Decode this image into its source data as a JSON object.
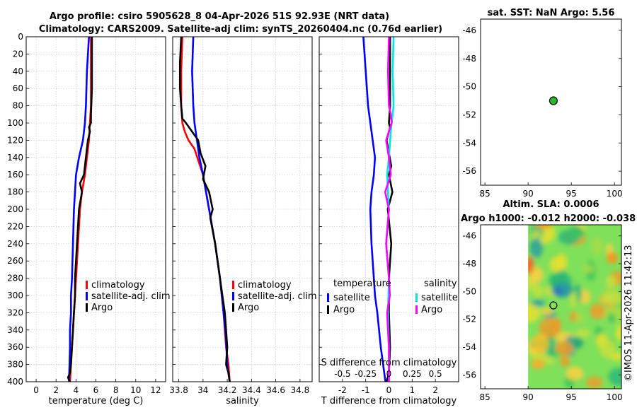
{
  "header": {
    "line1": "Argo profile: csiro 5905628_8 04-Apr-2026 51S 92.93E (NRT data)",
    "line2": "Climatology: CARS2009. Satellite-adj clim: synTS_20260404.nc (0.76d earlier)"
  },
  "stamp": "©IMOS 11-Apr-2026 11:42:13",
  "colors": {
    "climatology": "#ff0000",
    "satellite": "#0000ff",
    "argo": "#000000",
    "sat_salinity": "#00e5e5",
    "argo_salinity": "#ff00ff",
    "marker": "#22bb22"
  },
  "chart_data": [
    {
      "id": "temperature",
      "type": "line",
      "xlabel": "temperature (deg C)",
      "ylabel": "",
      "xlim": [
        -1,
        13
      ],
      "ylim": [
        400,
        0
      ],
      "xticks": [
        0,
        2,
        4,
        6,
        8,
        10,
        12
      ],
      "yticks": [
        0,
        20,
        40,
        60,
        80,
        100,
        120,
        140,
        160,
        180,
        200,
        220,
        240,
        260,
        280,
        300,
        320,
        340,
        360,
        380,
        400
      ],
      "grid": true,
      "legend": {
        "position": "lower-right",
        "entries": [
          "climatology",
          "satellite-adj. clim",
          "Argo"
        ]
      },
      "series": [
        {
          "name": "climatology",
          "color": "#ff0000",
          "x": [
            5.5,
            5.5,
            5.5,
            5.4,
            5.3,
            5.1,
            4.9,
            4.6,
            4.4,
            4.3,
            4.2,
            4.1,
            4.0,
            3.9,
            3.8,
            3.7,
            3.6,
            3.5,
            3.4
          ],
          "y": [
            0,
            40,
            80,
            100,
            120,
            140,
            160,
            180,
            200,
            220,
            240,
            260,
            280,
            300,
            320,
            340,
            360,
            380,
            400
          ]
        },
        {
          "name": "satellite-adj. clim",
          "color": "#0000ff",
          "x": [
            5.3,
            5.1,
            5.0,
            4.9,
            4.7,
            4.3,
            4.0,
            3.8,
            3.7,
            3.6,
            3.5,
            3.5,
            3.4,
            3.4,
            3.3
          ],
          "y": [
            0,
            40,
            80,
            100,
            120,
            140,
            160,
            200,
            240,
            280,
            300,
            320,
            340,
            360,
            400
          ]
        },
        {
          "name": "Argo",
          "color": "#000000",
          "x": [
            5.6,
            5.6,
            5.6,
            5.5,
            5.5,
            5.3,
            5.4,
            5.2,
            5.0,
            4.9,
            4.8,
            4.4,
            4.6,
            4.3,
            4.2,
            4.1,
            4.0,
            3.9,
            3.9,
            3.8,
            3.7,
            3.6,
            3.5,
            3.4,
            3.2,
            3.3,
            3.4
          ],
          "y": [
            0,
            30,
            60,
            90,
            100,
            105,
            110,
            120,
            140,
            150,
            160,
            170,
            180,
            200,
            220,
            240,
            260,
            280,
            300,
            320,
            340,
            360,
            380,
            390,
            395,
            398,
            400
          ]
        }
      ]
    },
    {
      "id": "salinity",
      "type": "line",
      "xlabel": "salinity",
      "ylabel": "",
      "xlim": [
        33.75,
        34.9
      ],
      "ylim": [
        400,
        0
      ],
      "xticks": [
        33.8,
        34.0,
        34.2,
        34.4,
        34.6,
        34.8
      ],
      "xtick_labels": [
        "33.8",
        "34",
        "34.2",
        "34.4",
        "34.6",
        "34.8"
      ],
      "grid": true,
      "legend": {
        "position": "lower-right",
        "entries": [
          "climatology",
          "satellite-adj. clim",
          "Argo"
        ]
      },
      "series": [
        {
          "name": "climatology",
          "color": "#ff0000",
          "x": [
            33.83,
            33.82,
            33.82,
            33.83,
            33.85,
            33.88,
            33.93,
            34.0,
            34.05,
            34.1,
            34.14,
            34.17,
            34.19,
            34.21,
            34.22
          ],
          "y": [
            0,
            40,
            80,
            100,
            110,
            120,
            130,
            160,
            200,
            240,
            280,
            320,
            360,
            380,
            400
          ]
        },
        {
          "name": "satellite-adj. clim",
          "color": "#0000ff",
          "x": [
            33.92,
            33.91,
            33.92,
            33.93,
            33.95,
            33.97,
            34.0,
            34.05,
            34.1,
            34.14,
            34.17,
            34.19,
            34.2,
            34.22
          ],
          "y": [
            0,
            40,
            80,
            100,
            120,
            140,
            160,
            200,
            240,
            280,
            320,
            350,
            380,
            400
          ]
        },
        {
          "name": "Argo",
          "color": "#000000",
          "x": [
            33.82,
            33.81,
            33.81,
            33.82,
            33.83,
            33.86,
            33.91,
            33.96,
            33.98,
            34.02,
            34.0,
            34.05,
            34.08,
            34.06,
            34.1,
            34.14,
            34.16,
            34.18,
            34.19,
            34.2,
            34.19,
            34.21,
            34.22
          ],
          "y": [
            0,
            30,
            60,
            80,
            95,
            100,
            110,
            120,
            135,
            150,
            165,
            180,
            200,
            210,
            240,
            280,
            300,
            320,
            340,
            360,
            380,
            390,
            400
          ]
        }
      ]
    },
    {
      "id": "difference",
      "type": "line",
      "xlabel": "T difference from climatology",
      "x2label": "S difference from climatology",
      "xlim": [
        -3,
        3
      ],
      "x2lim": [
        -0.75,
        0.75
      ],
      "ylim": [
        400,
        0
      ],
      "xticks": [
        -2,
        -1,
        0,
        1,
        2
      ],
      "x2ticks": [
        -0.5,
        -0.25,
        0,
        0.25,
        0.5
      ],
      "x2tick_labels": [
        "-0.5",
        "-0.25",
        "0",
        "0.25",
        "0.5"
      ],
      "grid": true,
      "legend": {
        "position": "lower",
        "temperature_title": "temperature",
        "salinity_title": "salinity",
        "temperature_entries": [
          "satellite",
          "Argo"
        ],
        "salinity_entries": [
          "satellite",
          "Argo"
        ]
      },
      "series": [
        {
          "name": "temperature satellite",
          "color": "#0000ff",
          "axis": "T",
          "x": [
            -1.1,
            -1.0,
            -0.9,
            -0.75,
            -0.6,
            -0.65,
            -0.75,
            -0.8,
            -0.75,
            -0.65,
            -0.6,
            -0.5,
            -0.35,
            -0.25,
            -0.15
          ],
          "y": [
            0,
            40,
            80,
            110,
            140,
            160,
            180,
            200,
            240,
            280,
            300,
            320,
            360,
            380,
            400
          ]
        },
        {
          "name": "temperature Argo",
          "color": "#000000",
          "axis": "T",
          "x": [
            0.05,
            0.05,
            0.05,
            0.0,
            0.05,
            -0.1,
            0.1,
            0.0,
            0.15,
            -0.05,
            0.1,
            0.0,
            0.0,
            0.05,
            0.0,
            -0.1
          ],
          "y": [
            0,
            40,
            80,
            100,
            105,
            120,
            150,
            160,
            180,
            200,
            240,
            280,
            320,
            360,
            390,
            400
          ]
        },
        {
          "name": "salinity satellite",
          "color": "#00e5e5",
          "axis": "S",
          "x": [
            0.05,
            0.04,
            0.05,
            0.02,
            0.0,
            -0.02,
            0.0,
            -0.03,
            0.0,
            -0.01,
            0.0,
            0.0
          ],
          "y": [
            0,
            40,
            80,
            110,
            140,
            160,
            200,
            240,
            280,
            320,
            360,
            400
          ]
        },
        {
          "name": "salinity Argo",
          "color": "#ff00ff",
          "axis": "S",
          "x": [
            0.0,
            -0.01,
            0.0,
            0.02,
            0.03,
            -0.03,
            0.0,
            0.02,
            -0.04,
            0.0,
            -0.03,
            0.0,
            0.01,
            -0.02,
            0.0,
            0.0
          ],
          "y": [
            0,
            40,
            80,
            90,
            100,
            120,
            140,
            160,
            180,
            200,
            240,
            280,
            300,
            320,
            360,
            400
          ]
        }
      ]
    },
    {
      "id": "sst_map",
      "type": "scatter",
      "title": "sat. SST: NaN Argo: 5.56",
      "xlim": [
        84.5,
        100.8
      ],
      "ylim": [
        -57,
        -45.2
      ],
      "xticks": [
        85,
        90,
        95,
        100
      ],
      "yticks": [
        -46,
        -48,
        -50,
        -52,
        -54,
        -56
      ],
      "points": [
        {
          "lon": 92.93,
          "lat": -51.0,
          "color": "#22bb22"
        }
      ]
    },
    {
      "id": "sla_map",
      "type": "heatmap",
      "title_line1": "Altim. SLA: 0.0006",
      "title_line2": "Argo h1000: -0.012 h2000: -0.038",
      "xlim": [
        84.5,
        100.8
      ],
      "ylim": [
        -57,
        -45.2
      ],
      "xticks": [
        85,
        90,
        95,
        100
      ],
      "yticks": [
        -46,
        -48,
        -50,
        -52,
        -54,
        -56
      ],
      "data_lon_range": [
        90,
        100.8
      ],
      "points": [
        {
          "lon": 92.93,
          "lat": -51.0
        }
      ],
      "colormap": "jet"
    }
  ]
}
